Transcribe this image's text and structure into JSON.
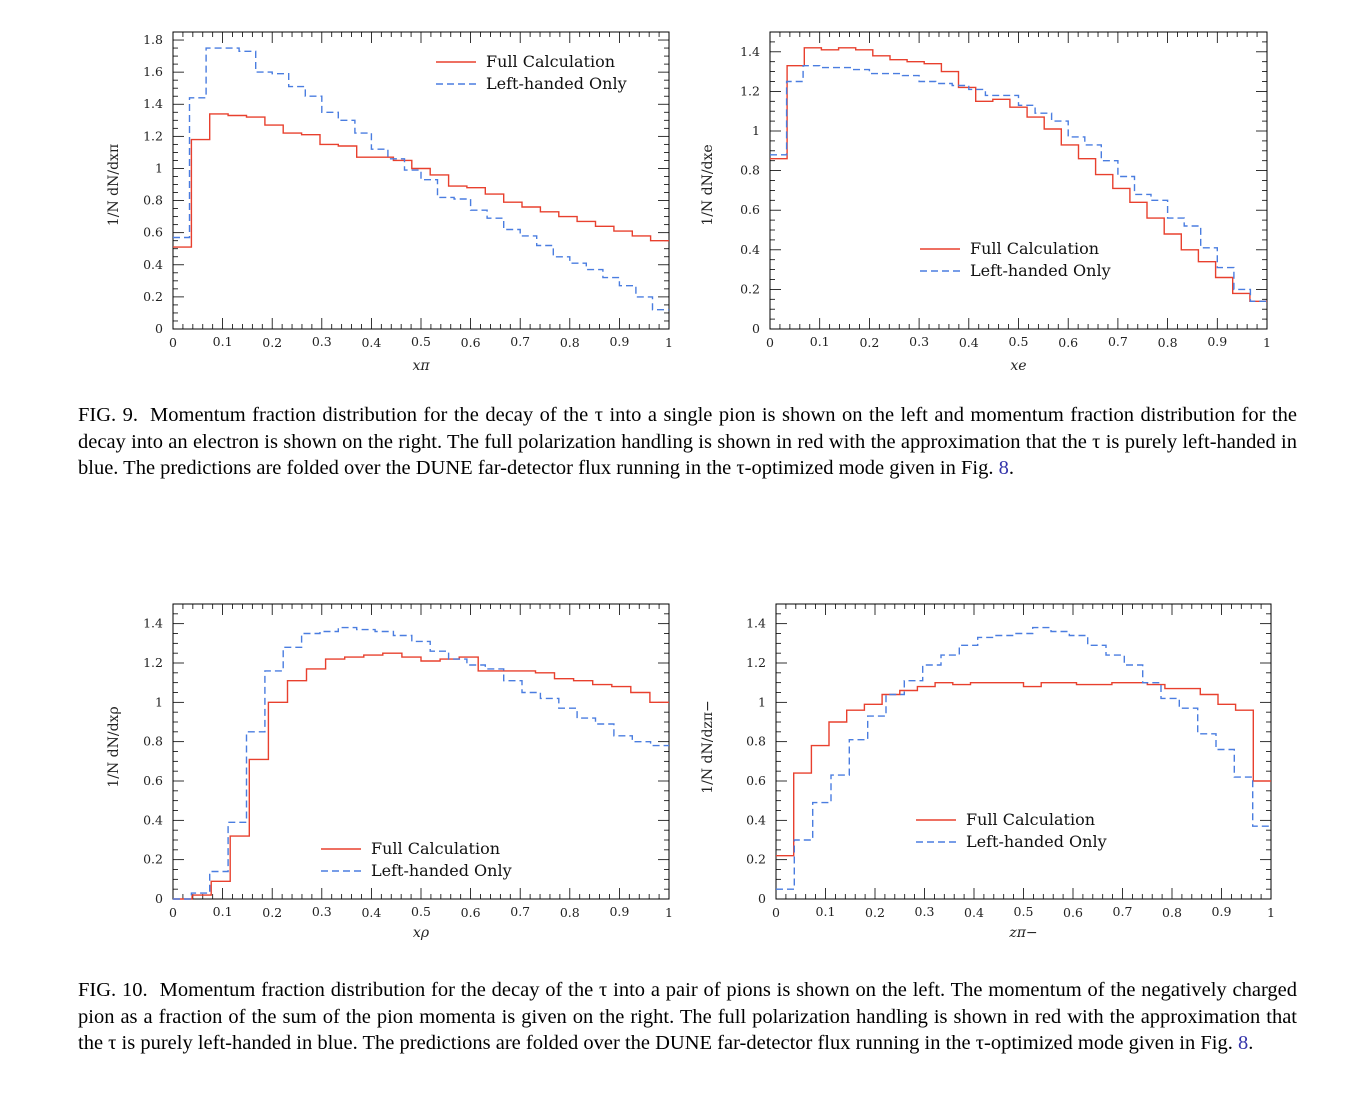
{
  "colors": {
    "full": "#e8402e",
    "left": "#4a7de0",
    "frame": "#000000"
  },
  "chart_data": [
    {
      "type": "line",
      "id": "xpi",
      "xlabel": "xπ",
      "ylabel": "1/N dN/dxπ",
      "xlim": [
        0,
        1
      ],
      "ylim": [
        0,
        1.85
      ],
      "xticks": [
        "0",
        "0.1",
        "0.2",
        "0.3",
        "0.4",
        "0.5",
        "0.6",
        "0.7",
        "0.8",
        "0.9",
        "1"
      ],
      "yticks": [
        {
          "v": 0,
          "t": "0"
        },
        {
          "v": 0.2,
          "t": "0.2"
        },
        {
          "v": 0.4,
          "t": "0.4"
        },
        {
          "v": 0.6,
          "t": "0.6"
        },
        {
          "v": 0.8,
          "t": "0.8"
        },
        {
          "v": 1.0,
          "t": "1"
        },
        {
          "v": 1.2,
          "t": "1.2"
        },
        {
          "v": 1.4,
          "t": "1.4"
        },
        {
          "v": 1.6,
          "t": "1.6"
        },
        {
          "v": 1.8,
          "t": "1.8"
        }
      ],
      "legend_pos": "top-right",
      "series": [
        {
          "name": "Full Calculation",
          "style": "solid",
          "values": [
            0.51,
            1.18,
            1.34,
            1.33,
            1.32,
            1.27,
            1.22,
            1.21,
            1.15,
            1.14,
            1.07,
            1.07,
            1.05,
            1.0,
            0.96,
            0.89,
            0.88,
            0.84,
            0.79,
            0.76,
            0.73,
            0.7,
            0.67,
            0.64,
            0.61,
            0.58,
            0.55
          ]
        },
        {
          "name": "Left-handed Only",
          "style": "dashed",
          "values": [
            0.57,
            1.44,
            1.75,
            1.75,
            1.73,
            1.6,
            1.59,
            1.51,
            1.45,
            1.35,
            1.3,
            1.22,
            1.12,
            1.06,
            0.99,
            0.93,
            0.82,
            0.81,
            0.74,
            0.69,
            0.62,
            0.58,
            0.52,
            0.45,
            0.41,
            0.37,
            0.32,
            0.27,
            0.2,
            0.12
          ]
        }
      ]
    },
    {
      "type": "line",
      "id": "xe",
      "xlabel": "xe",
      "ylabel": "1/N dN/dxe",
      "xlim": [
        0,
        1
      ],
      "ylim": [
        0,
        1.5
      ],
      "xticks": [
        "0",
        "0.1",
        "0.2",
        "0.3",
        "0.4",
        "0.5",
        "0.6",
        "0.7",
        "0.8",
        "0.9",
        "1"
      ],
      "yticks": [
        {
          "v": 0,
          "t": "0"
        },
        {
          "v": 0.2,
          "t": "0.2"
        },
        {
          "v": 0.4,
          "t": "0.4"
        },
        {
          "v": 0.6,
          "t": "0.6"
        },
        {
          "v": 0.8,
          "t": "0.8"
        },
        {
          "v": 1.0,
          "t": "1"
        },
        {
          "v": 1.2,
          "t": "1.2"
        },
        {
          "v": 1.4,
          "t": "1.4"
        }
      ],
      "legend_pos": "bottom-right",
      "series": [
        {
          "name": "Full Calculation",
          "style": "solid",
          "values": [
            0.86,
            1.33,
            1.42,
            1.41,
            1.42,
            1.41,
            1.38,
            1.36,
            1.35,
            1.34,
            1.3,
            1.22,
            1.15,
            1.16,
            1.12,
            1.07,
            1.01,
            0.93,
            0.86,
            0.78,
            0.71,
            0.64,
            0.56,
            0.48,
            0.4,
            0.34,
            0.26,
            0.18,
            0.14
          ]
        },
        {
          "name": "Left-handed Only",
          "style": "dashed",
          "values": [
            0.88,
            1.25,
            1.33,
            1.32,
            1.32,
            1.31,
            1.29,
            1.29,
            1.28,
            1.25,
            1.24,
            1.23,
            1.21,
            1.18,
            1.18,
            1.13,
            1.09,
            1.05,
            0.97,
            0.93,
            0.85,
            0.77,
            0.68,
            0.65,
            0.56,
            0.52,
            0.41,
            0.31,
            0.2,
            0.14
          ]
        }
      ]
    },
    {
      "type": "line",
      "id": "xrho",
      "xlabel": "xρ",
      "ylabel": "1/N dN/dxρ",
      "xlim": [
        0,
        1
      ],
      "ylim": [
        0,
        1.5
      ],
      "xticks": [
        "0",
        "0.1",
        "0.2",
        "0.3",
        "0.4",
        "0.5",
        "0.6",
        "0.7",
        "0.8",
        "0.9",
        "1"
      ],
      "yticks": [
        {
          "v": 0,
          "t": "0"
        },
        {
          "v": 0.2,
          "t": "0.2"
        },
        {
          "v": 0.4,
          "t": "0.4"
        },
        {
          "v": 0.6,
          "t": "0.6"
        },
        {
          "v": 0.8,
          "t": "0.8"
        },
        {
          "v": 1.0,
          "t": "1"
        },
        {
          "v": 1.2,
          "t": "1.2"
        },
        {
          "v": 1.4,
          "t": "1.4"
        }
      ],
      "legend_pos": "bottom-center",
      "series": [
        {
          "name": "Full Calculation",
          "style": "solid",
          "values": [
            0.0,
            0.02,
            0.09,
            0.32,
            0.71,
            1.0,
            1.11,
            1.17,
            1.22,
            1.23,
            1.24,
            1.25,
            1.23,
            1.21,
            1.22,
            1.23,
            1.16,
            1.16,
            1.16,
            1.15,
            1.12,
            1.11,
            1.09,
            1.08,
            1.05,
            1.0
          ]
        },
        {
          "name": "Left-handed Only",
          "style": "dashed",
          "values": [
            0.0,
            0.03,
            0.14,
            0.39,
            0.85,
            1.16,
            1.28,
            1.35,
            1.36,
            1.38,
            1.37,
            1.36,
            1.34,
            1.31,
            1.26,
            1.22,
            1.19,
            1.17,
            1.11,
            1.05,
            1.02,
            0.97,
            0.92,
            0.89,
            0.83,
            0.8,
            0.78
          ]
        }
      ]
    },
    {
      "type": "line",
      "id": "zpi",
      "xlabel": "zπ−",
      "ylabel": "1/N dN/dzπ−",
      "xlim": [
        0,
        1
      ],
      "ylim": [
        0,
        1.5
      ],
      "xticks": [
        "0",
        "0.1",
        "0.2",
        "0.3",
        "0.4",
        "0.5",
        "0.6",
        "0.7",
        "0.8",
        "0.9",
        "1"
      ],
      "yticks": [
        {
          "v": 0,
          "t": "0"
        },
        {
          "v": 0.2,
          "t": "0.2"
        },
        {
          "v": 0.4,
          "t": "0.4"
        },
        {
          "v": 0.6,
          "t": "0.6"
        },
        {
          "v": 0.8,
          "t": "0.8"
        },
        {
          "v": 1.0,
          "t": "1"
        },
        {
          "v": 1.2,
          "t": "1.2"
        },
        {
          "v": 1.4,
          "t": "1.4"
        }
      ],
      "legend_pos": "bottom-right",
      "series": [
        {
          "name": "Full Calculation",
          "style": "solid",
          "values": [
            0.22,
            0.64,
            0.78,
            0.9,
            0.96,
            0.99,
            1.04,
            1.06,
            1.08,
            1.1,
            1.09,
            1.1,
            1.1,
            1.1,
            1.08,
            1.1,
            1.1,
            1.09,
            1.09,
            1.1,
            1.1,
            1.09,
            1.07,
            1.07,
            1.04,
            0.99,
            0.96,
            0.6
          ]
        },
        {
          "name": "Left-handed Only",
          "style": "dashed",
          "values": [
            0.05,
            0.3,
            0.49,
            0.63,
            0.81,
            0.93,
            1.04,
            1.11,
            1.19,
            1.24,
            1.29,
            1.33,
            1.34,
            1.35,
            1.38,
            1.36,
            1.34,
            1.29,
            1.24,
            1.19,
            1.1,
            1.02,
            0.97,
            0.84,
            0.76,
            0.62,
            0.37
          ]
        }
      ]
    }
  ],
  "captions": {
    "fig9": {
      "label": "FIG. 9.",
      "text": "Momentum fraction distribution for the decay of the τ into a single pion is shown on the left and momentum fraction distribution for the decay into an electron is shown on the right. The full polarization handling is shown in red with the approximation that the τ is purely left-handed in blue. The predictions are folded over the DUNE far-detector flux running in the τ-optimized mode given in Fig. ",
      "ref": "8",
      "end": "."
    },
    "fig10": {
      "label": "FIG. 10.",
      "text": "Momentum fraction distribution for the decay of the τ into a pair of pions is shown on the left. The momentum of the negatively charged pion as a fraction of the sum of the pion momenta is given on the right. The full polarization handling is shown in red with the approximation that the τ is purely left-handed in blue. The predictions are folded over the DUNE far-detector flux running in the τ-optimized mode given in Fig. ",
      "ref": "8",
      "end": "."
    }
  }
}
